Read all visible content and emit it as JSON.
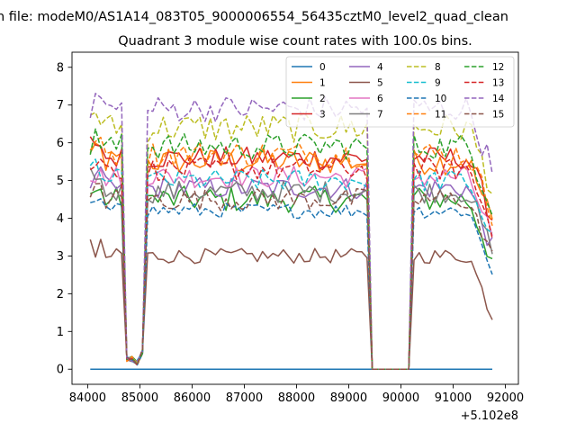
{
  "figure": {
    "suptitle": "n file: modeM0/AS1A14_083T05_9000006554_56435cztM0_level2_quad_clean"
  },
  "chart_data": {
    "type": "line",
    "title": "Quadrant 3 module wise count rates with 100.0s bins.",
    "xlabel": "",
    "ylabel": "",
    "x_offset_label": "+5.102e8",
    "xlim": [
      83700,
      92250
    ],
    "ylim": [
      -0.4,
      8.4
    ],
    "xticks": [
      84000,
      85000,
      86000,
      87000,
      88000,
      89000,
      90000,
      91000,
      92000
    ],
    "yticks": [
      0,
      1,
      2,
      3,
      4,
      5,
      6,
      7,
      8
    ],
    "legend_position": "top-right",
    "legend_columns": 4,
    "dips": [
      {
        "x": 84800,
        "value": 0.2
      },
      {
        "x": 84900,
        "value": 0.1
      },
      {
        "x": 85000,
        "value": 0.4
      }
    ],
    "gap": {
      "x_start": 89400,
      "x_end": 90200,
      "value": 0.0
    },
    "x_start": 84050,
    "x_end": 91750,
    "bin": 100,
    "series": [
      {
        "name": "0",
        "color": "#1f77b4",
        "dash": "solid",
        "level": 0.0,
        "noise": 0.0
      },
      {
        "name": "1",
        "color": "#ff7f0e",
        "dash": "solid",
        "level": 5.5,
        "noise": 0.35
      },
      {
        "name": "2",
        "color": "#2ca02c",
        "dash": "solid",
        "level": 4.5,
        "noise": 0.35
      },
      {
        "name": "3",
        "color": "#d62728",
        "dash": "solid",
        "level": 5.6,
        "noise": 0.3
      },
      {
        "name": "4",
        "color": "#9467bd",
        "dash": "solid",
        "level": 4.8,
        "noise": 0.3
      },
      {
        "name": "5",
        "color": "#8c564b",
        "dash": "solid",
        "level": 3.0,
        "noise": 0.2
      },
      {
        "name": "6",
        "color": "#e377c2",
        "dash": "solid",
        "level": 5.1,
        "noise": 0.3
      },
      {
        "name": "7",
        "color": "#7f7f7f",
        "dash": "solid",
        "level": 4.7,
        "noise": 0.3
      },
      {
        "name": "8",
        "color": "#bcbd22",
        "dash": "dashed",
        "level": 6.4,
        "noise": 0.4
      },
      {
        "name": "9",
        "color": "#17becf",
        "dash": "dashed",
        "level": 5.0,
        "noise": 0.3
      },
      {
        "name": "10",
        "color": "#1f77b4",
        "dash": "dashed",
        "level": 4.2,
        "noise": 0.2
      },
      {
        "name": "11",
        "color": "#ff7f0e",
        "dash": "dashed",
        "level": 5.7,
        "noise": 0.35
      },
      {
        "name": "12",
        "color": "#2ca02c",
        "dash": "dashed",
        "level": 5.9,
        "noise": 0.35
      },
      {
        "name": "13",
        "color": "#d62728",
        "dash": "dashed",
        "level": 5.3,
        "noise": 0.3
      },
      {
        "name": "14",
        "color": "#9467bd",
        "dash": "dashed",
        "level": 6.9,
        "noise": 0.35
      },
      {
        "name": "15",
        "color": "#8c564b",
        "dash": "dashed",
        "level": 4.5,
        "noise": 0.3
      }
    ]
  }
}
